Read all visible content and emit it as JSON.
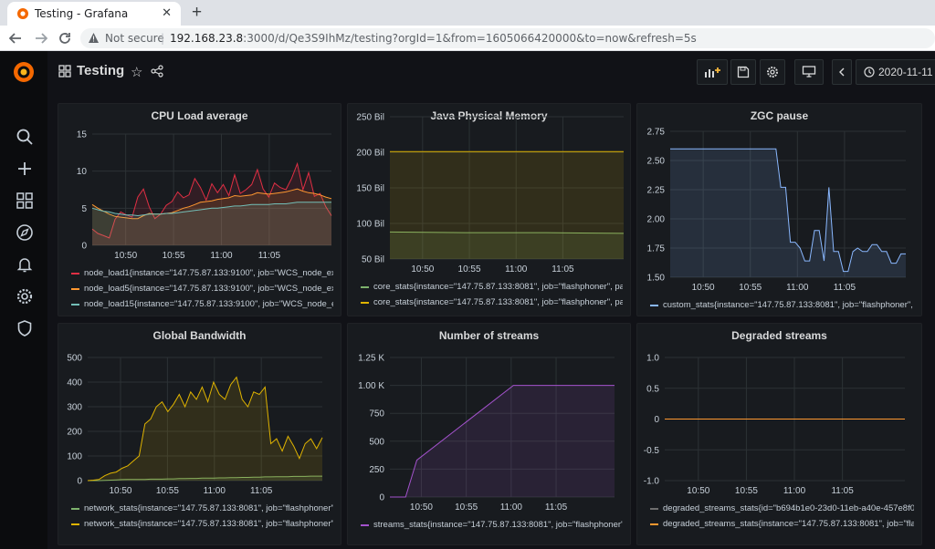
{
  "browser": {
    "tab_title": "Testing - Grafana",
    "tab_close": "✕",
    "new_tab": "+",
    "security_label": "Not secure",
    "url_host": "192.168.23.8",
    "url_rest": ":3000/d/Qe3S9IhMz/testing?orgId=1&from=1605066420000&to=now&refresh=5s"
  },
  "dashboard": {
    "title": "Testing",
    "time_range": "2020-11-11",
    "star_glyph": "☆"
  },
  "colors": {
    "red": "#e02f44",
    "orange": "#ff9830",
    "cyan": "#73bfb8",
    "yellow": "#e0b400",
    "green": "#7eb26d",
    "purple": "#a352cc",
    "blue": "#8ab8ff",
    "gray": "#6e6e6e"
  },
  "panels": [
    {
      "title": "CPU Load average",
      "chart_data": {
        "type": "line",
        "x_ticks": [
          "10:50",
          "10:55",
          "11:00",
          "11:05"
        ],
        "y_ticks": [
          "0",
          "5",
          "10",
          "15"
        ],
        "ylim": [
          0,
          15
        ],
        "series": [
          {
            "name": "node_load1{instance=\"147.75.87.133:9100\", job=\"WCS_node_exp",
            "color": "#e02f44",
            "values": [
              2.2,
              1.6,
              1.3,
              1.0,
              3.5,
              4.5,
              4.1,
              3.8,
              6.5,
              7.6,
              5.2,
              3.6,
              4.2,
              5.4,
              5.9,
              7.2,
              6.4,
              6.8,
              9.0,
              7.8,
              6.1,
              8.3,
              7.1,
              8.2,
              6.7,
              9.5,
              7.0,
              7.5,
              8.2,
              10.2,
              7.6,
              6.5,
              8.4,
              7.8,
              7.5,
              9.0,
              11.0,
              7.5,
              9.8,
              6.6,
              7.0,
              5.2,
              4.0
            ]
          },
          {
            "name": "node_load5{instance=\"147.75.87.133:9100\", job=\"WCS_node_exp",
            "color": "#ff9830",
            "values": [
              5.5,
              5.0,
              4.6,
              4.2,
              3.9,
              3.8,
              3.7,
              3.6,
              3.6,
              4.0,
              4.3,
              4.2,
              4.2,
              4.3,
              4.4,
              4.7,
              5.0,
              5.2,
              5.5,
              5.8,
              5.9,
              6.0,
              6.2,
              6.3,
              6.4,
              6.7,
              6.6,
              6.7,
              6.8,
              7.1,
              7.0,
              6.9,
              7.0,
              7.1,
              7.2,
              7.4,
              7.6,
              7.3,
              7.1,
              7.0,
              6.8,
              6.5,
              6.3
            ]
          },
          {
            "name": "node_load15{instance=\"147.75.87.133:9100\", job=\"WCS_node_ex",
            "color": "#73bfb8",
            "values": [
              5.0,
              4.8,
              4.6,
              4.5,
              4.3,
              4.2,
              4.1,
              4.1,
              4.0,
              4.1,
              4.2,
              4.2,
              4.2,
              4.3,
              4.3,
              4.4,
              4.5,
              4.6,
              4.7,
              4.8,
              4.9,
              5.0,
              5.0,
              5.1,
              5.2,
              5.3,
              5.3,
              5.4,
              5.5,
              5.5,
              5.5,
              5.5,
              5.6,
              5.6,
              5.6,
              5.7,
              5.8,
              5.8,
              5.8,
              5.8,
              5.8,
              5.8,
              5.8
            ]
          }
        ]
      }
    },
    {
      "title": "Java Physical Memory",
      "chart_data": {
        "type": "line",
        "x_ticks": [
          "10:50",
          "10:55",
          "11:00",
          "11:05"
        ],
        "y_ticks": [
          "50 Bil",
          "100 Bil",
          "150 Bil",
          "200 Bil",
          "250 Bil"
        ],
        "ylim": [
          50,
          250
        ],
        "series": [
          {
            "name": "core_stats{instance=\"147.75.87.133:8081\", job=\"flashphoner\", pa",
            "color": "#7eb26d",
            "values": [
              88,
              87,
              87,
              86
            ]
          },
          {
            "name": "core_stats{instance=\"147.75.87.133:8081\", job=\"flashphoner\", pa",
            "color": "#e0b400",
            "values": [
              201,
              201,
              201,
              201
            ]
          }
        ]
      }
    },
    {
      "title": "ZGC pause",
      "chart_data": {
        "type": "line",
        "x_ticks": [
          "10:50",
          "10:55",
          "11:00",
          "11:05"
        ],
        "y_ticks": [
          "1.50",
          "1.75",
          "2.00",
          "2.25",
          "2.50",
          "2.75"
        ],
        "ylim": [
          1.5,
          2.75
        ],
        "series": [
          {
            "name": "custom_stats{instance=\"147.75.87.133:8081\", job=\"flashphoner\",",
            "color": "#8ab8ff",
            "values": [
              2.6,
              2.6,
              2.6,
              2.6,
              2.6,
              2.6,
              2.6,
              2.6,
              2.6,
              2.6,
              2.6,
              2.6,
              2.6,
              2.6,
              2.6,
              2.6,
              2.6,
              2.6,
              2.6,
              2.6,
              2.6,
              2.6,
              2.6,
              2.27,
              2.27,
              1.8,
              1.8,
              1.75,
              1.64,
              1.64,
              1.9,
              1.9,
              1.64,
              2.27,
              1.72,
              1.72,
              1.55,
              1.55,
              1.72,
              1.75,
              1.72,
              1.72,
              1.78,
              1.78,
              1.72,
              1.72,
              1.62,
              1.62,
              1.7,
              1.7
            ]
          }
        ]
      }
    },
    {
      "title": "Global Bandwidth",
      "chart_data": {
        "type": "area",
        "x_ticks": [
          "10:50",
          "10:55",
          "11:00",
          "11:05"
        ],
        "y_ticks": [
          "0",
          "100",
          "200",
          "300",
          "400",
          "500"
        ],
        "ylim": [
          0,
          500
        ],
        "series": [
          {
            "name": "network_stats{instance=\"147.75.87.133:8081\", job=\"flashphoner\"",
            "color": "#7eb26d",
            "values": [
              0,
              0,
              0,
              1,
              2,
              3,
              4,
              5,
              5,
              5,
              5,
              6,
              6,
              6,
              7,
              7,
              8,
              8,
              9,
              9,
              10,
              10,
              10,
              11,
              11,
              12,
              12,
              13,
              13,
              14,
              14,
              15,
              15,
              16,
              16,
              16,
              17,
              17,
              17,
              18,
              18,
              18
            ]
          },
          {
            "name": "network_stats{instance=\"147.75.87.133:8081\", job=\"flashphoner\"",
            "color": "#e0b400",
            "values": [
              0,
              2,
              5,
              20,
              30,
              35,
              50,
              60,
              80,
              100,
              230,
              250,
              300,
              320,
              280,
              310,
              350,
              300,
              360,
              330,
              380,
              320,
              400,
              350,
              330,
              390,
              420,
              330,
              300,
              360,
              350,
              380,
              150,
              170,
              120,
              180,
              140,
              90,
              150,
              170,
              130,
              175
            ]
          }
        ]
      }
    },
    {
      "title": "Number of streams",
      "chart_data": {
        "type": "area",
        "x_ticks": [
          "10:50",
          "10:55",
          "11:00",
          "11:05"
        ],
        "y_ticks": [
          "0",
          "250",
          "500",
          "750",
          "1.00 K",
          "1.25 K"
        ],
        "ylim": [
          0,
          1250
        ],
        "series": [
          {
            "name": "streams_stats{instance=\"147.75.87.133:8081\", job=\"flashphoner\"",
            "color": "#a352cc",
            "points": [
              [
                0,
                0
              ],
              [
                0.07,
                0
              ],
              [
                0.12,
                330
              ],
              [
                0.55,
                1000
              ],
              [
                1,
                1000
              ]
            ]
          }
        ]
      }
    },
    {
      "title": "Degraded streams",
      "chart_data": {
        "type": "line",
        "x_ticks": [
          "10:50",
          "10:55",
          "11:00",
          "11:05"
        ],
        "y_ticks": [
          "-1.0",
          "-0.5",
          "0",
          "0.5",
          "1.0"
        ],
        "ylim": [
          -1,
          1
        ],
        "series": [
          {
            "name": "degraded_streams_stats{id=\"b694b1e0-23d0-11eb-a40e-457e8f0",
            "color": "#6e6e6e",
            "values": [
              0,
              0
            ]
          },
          {
            "name": "degraded_streams_stats{instance=\"147.75.87.133:8081\", job=\"fla",
            "color": "#ff9830",
            "values": [
              0,
              0
            ]
          }
        ]
      }
    }
  ]
}
